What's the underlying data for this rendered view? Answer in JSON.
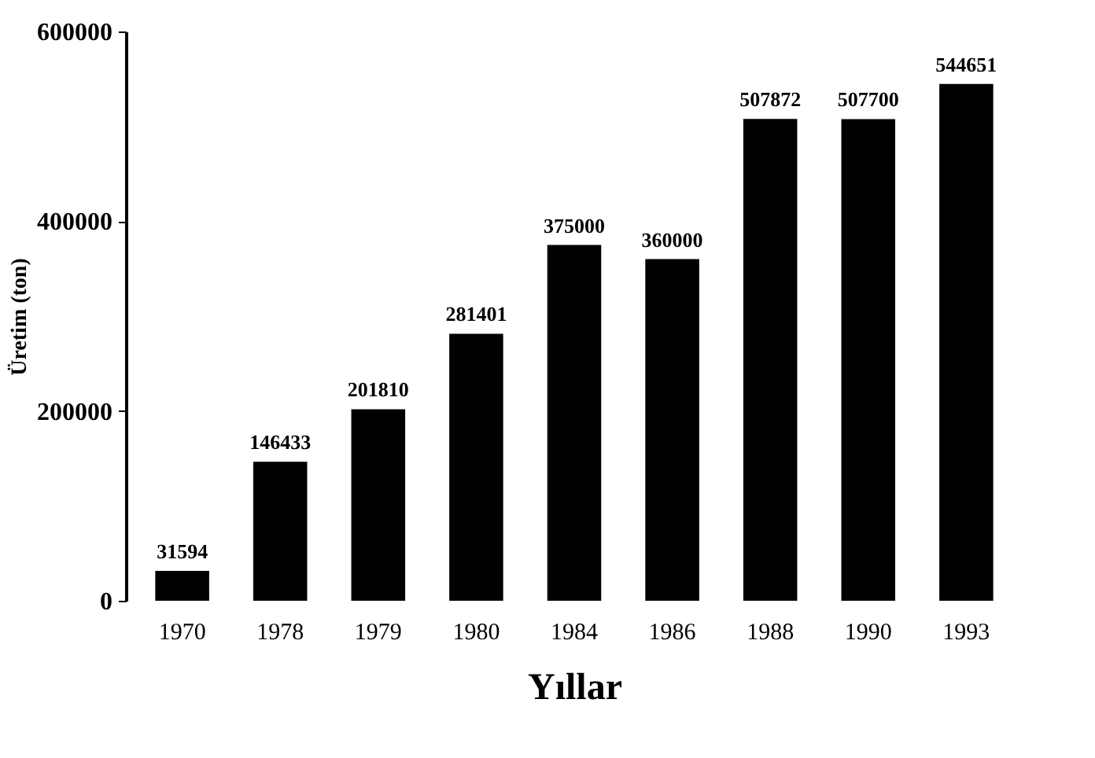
{
  "chart_data": {
    "type": "bar",
    "xlabel": "Yıllar",
    "ylabel": "Üretim (ton)",
    "categories": [
      "1970",
      "1978",
      "1979",
      "1980",
      "1984",
      "1986",
      "1988",
      "1990",
      "1993"
    ],
    "values": [
      31594,
      146433,
      201810,
      281401,
      375000,
      360000,
      507872,
      507700,
      544651
    ],
    "color": "#000000",
    "ylim": [
      0,
      600000
    ],
    "yticks": [
      0,
      200000,
      400000,
      600000
    ],
    "grid": false,
    "data_labels": true
  }
}
